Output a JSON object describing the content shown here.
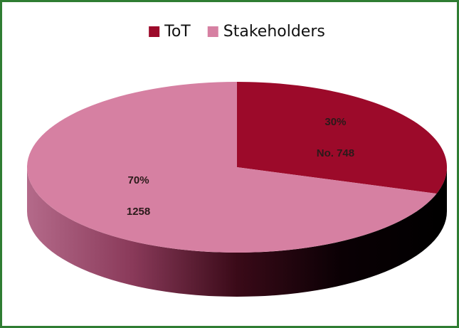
{
  "chart_data": {
    "type": "pie",
    "categories": [
      "ToT",
      "Stakeholders"
    ],
    "values": [
      30,
      70
    ],
    "value_labels": [
      "30%",
      "70%"
    ],
    "count_labels": [
      "No. 748",
      "1258"
    ],
    "colors": [
      "#9c0a2a",
      "#d680a2"
    ],
    "legend": "top"
  }
}
